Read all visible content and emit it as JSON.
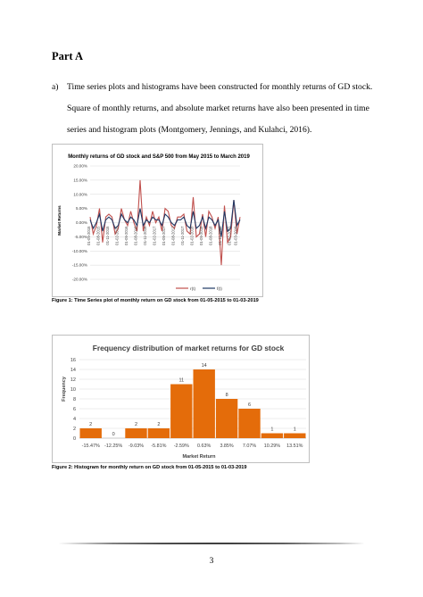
{
  "section_heading": "Part A",
  "paragraph": {
    "marker": "a)",
    "text": "Time series plots and histograms have been constructed for monthly returns of GD stock. Square of monthly returns, and absolute market returns have also been presented in time series and histogram plots (Montgomery, Jennings, and Kulahci, 2016)."
  },
  "figure1_caption": "Figure 1: Time Series plot of monthly return on GD stock from 01-05-2015 to 01-03-2019",
  "figure2_caption": "Figure 2: Histogram for monthly return on GD stock from 01-05-2015 to 01-03-2019",
  "page_number": "3",
  "chart_data": [
    {
      "type": "line",
      "title": "Monthly returns of GD stock and S&P 500 from May 2015 to March 2019",
      "ylabel": "Market Returns",
      "xlabel": "",
      "ylim": [
        -20,
        20
      ],
      "y_ticks": [
        "20.00%",
        "15.00%",
        "10.00%",
        "5.00%",
        "0.00%",
        "-5.00%",
        "-10.00%",
        "-15.00%",
        "-20.00%"
      ],
      "y_tick_values": [
        20,
        15,
        10,
        5,
        0,
        -5,
        -10,
        -15,
        -20
      ],
      "x_tick_labels": [
        "01-05-2015",
        "01-08-2015",
        "01-11-2015",
        "01-02-2016",
        "01-05-2016",
        "01-08-2016",
        "01-11-2016",
        "01-02-2017",
        "01-05-2017",
        "01-08-2017",
        "01-11-2017",
        "01-02-2018",
        "01-05-2018",
        "01-08-2018",
        "01-11-2018",
        "01-02-2019"
      ],
      "extra_x_label": "01-03-2019",
      "grid": true,
      "legend_position": "bottom-right",
      "series": [
        {
          "name": "r(t)",
          "color": "#c0504d",
          "values": [
            2,
            -4,
            -1,
            5,
            -7,
            2,
            3,
            2,
            -4,
            -2,
            5,
            1,
            -1,
            4,
            0,
            -3,
            15,
            -3,
            2,
            -1,
            4,
            0,
            2,
            -3,
            5,
            4,
            -1,
            -2,
            2,
            2,
            3,
            -3,
            -4,
            9,
            -5,
            -4,
            3,
            -5,
            4,
            2,
            -2,
            2,
            -15,
            6,
            -7,
            -5,
            8,
            -4,
            2
          ]
        },
        {
          "name": "f(t)",
          "color": "#1f3864",
          "values": [
            1,
            -2,
            0,
            3,
            -3,
            1,
            2,
            1,
            -2,
            -1,
            3,
            1,
            0,
            2,
            1,
            -1,
            5,
            -1,
            1,
            0,
            2,
            1,
            1,
            -1,
            3,
            2,
            0,
            -1,
            1,
            1,
            2,
            -1,
            -2,
            4,
            -2,
            -1,
            2,
            -2,
            2,
            1,
            -1,
            1,
            -5,
            4,
            -3,
            -2,
            8,
            -1,
            1
          ]
        }
      ]
    },
    {
      "type": "bar",
      "title": "Frequency distribution of market returns for GD stock",
      "xlabel": "Market Return",
      "ylabel": "Frequency",
      "ylim": [
        0,
        16
      ],
      "y_ticks": [
        0,
        2,
        4,
        6,
        8,
        10,
        12,
        14,
        16
      ],
      "categories": [
        "-15.47%",
        "-12.25%",
        "-9.03%",
        "-5.81%",
        "-2.59%",
        "0.63%",
        "3.85%",
        "7.07%",
        "10.29%",
        "13.51%"
      ],
      "values": [
        2,
        0,
        2,
        2,
        11,
        14,
        8,
        6,
        1,
        1
      ],
      "color": "#e46c0a",
      "grid": true
    }
  ]
}
